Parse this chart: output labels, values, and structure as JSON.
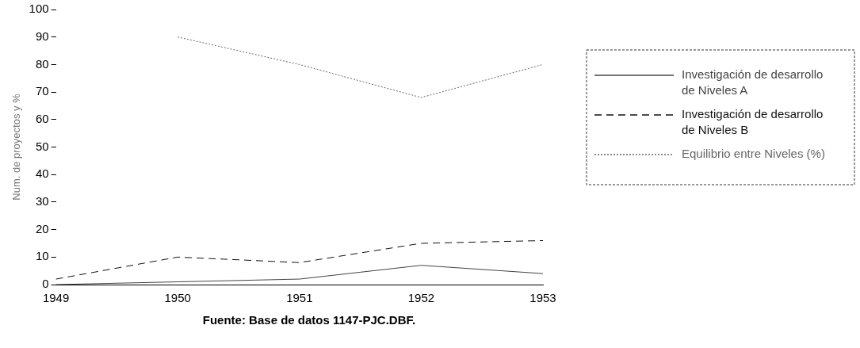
{
  "chart_data": {
    "type": "line",
    "ylabel": "Num. de proyectos y %",
    "categories": [
      "1949",
      "1950",
      "1951",
      "1952",
      "1953"
    ],
    "series": [
      {
        "name": "Investigación de desarrollo de Niveles A",
        "color": "#444444",
        "line_style": "solid",
        "values": [
          0,
          1,
          2,
          7,
          4
        ]
      },
      {
        "name": "Investigación de desarrollo de Niveles B",
        "color": "#111111",
        "line_style": "dashed",
        "values": [
          2,
          10,
          8,
          15,
          16
        ]
      },
      {
        "name": "Equilibrio entre Niveles (%)",
        "color": "#666666",
        "line_style": "dotted",
        "values": [
          null,
          90,
          80,
          68,
          80
        ]
      }
    ],
    "ylim": [
      0,
      100
    ],
    "yticks": [
      0,
      10,
      20,
      30,
      40,
      50,
      60,
      70,
      80,
      90,
      100
    ],
    "grid": false,
    "legend": "right",
    "marker": "none",
    "annotations": [
      "Fuente: Base de datos 1147-PJC.DBF."
    ]
  }
}
